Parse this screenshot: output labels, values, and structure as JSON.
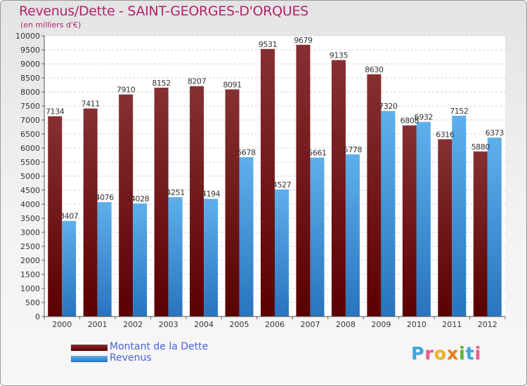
{
  "chart_data": {
    "type": "bar",
    "title": "Revenus/Dette - SAINT-GEORGES-D'ORQUES",
    "subtitle": "(en milliers d'€)",
    "categories": [
      "2000",
      "2001",
      "2002",
      "2003",
      "2004",
      "2005",
      "2006",
      "2007",
      "2008",
      "2009",
      "2010",
      "2011",
      "2012"
    ],
    "series": [
      {
        "name": "Montant de la Dette",
        "values": [
          7134,
          7411,
          7910,
          8152,
          8207,
          8091,
          9531,
          9679,
          9135,
          8630,
          6808,
          6316,
          5880
        ],
        "colors": {
          "top": "#863033",
          "bottom": "#5a0000"
        }
      },
      {
        "name": "Revenus",
        "values": [
          3407,
          4076,
          4028,
          4251,
          4194,
          5678,
          4527,
          5661,
          5778,
          7320,
          6932,
          7152,
          6373
        ],
        "colors": {
          "top": "#5eb0ec",
          "bottom": "#2874be"
        }
      }
    ],
    "ylim": [
      0,
      10000
    ],
    "ytick_step": 500,
    "yticks": [
      "0",
      "500",
      "1000",
      "1500",
      "2000",
      "2500",
      "3000",
      "3500",
      "4000",
      "4500",
      "5000",
      "5500",
      "6000",
      "6500",
      "7000",
      "7500",
      "8000",
      "8500",
      "9000",
      "9500",
      "10000"
    ],
    "grid": true,
    "legend_position": "bottom-left"
  },
  "logo": {
    "letters": [
      "P",
      "r",
      "o",
      "x",
      "i",
      "t",
      "i"
    ],
    "colors": [
      "#3ea7e0",
      "#e85d8a",
      "#f0b323",
      "#f07a1a",
      "#5bb432",
      "#3ea7e0",
      "#e85d8a"
    ]
  }
}
